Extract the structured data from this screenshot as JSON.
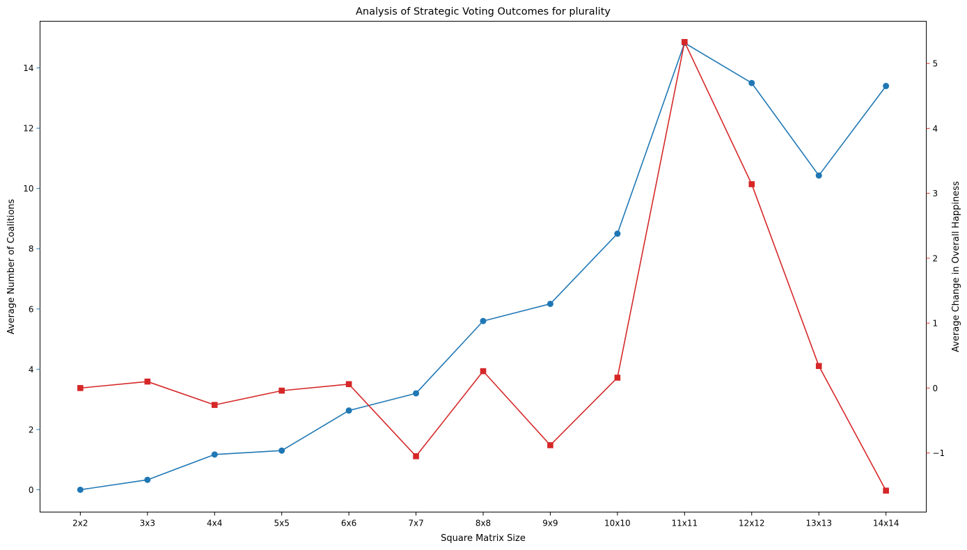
{
  "chart_data": {
    "type": "line",
    "title": "Analysis of Strategic Voting Outcomes for plurality",
    "xlabel": "Square Matrix Size",
    "categories": [
      "2x2",
      "3x3",
      "4x4",
      "5x5",
      "6x6",
      "7x7",
      "8x8",
      "9x9",
      "10x10",
      "11x11",
      "12x12",
      "13x13",
      "14x14"
    ],
    "grid": false,
    "legend": "none",
    "y_left": {
      "label": "Average Number of Coalitions",
      "color": "#1f77b4",
      "ylim": [
        -0.74,
        15.55
      ],
      "ticks": [
        0,
        2,
        4,
        6,
        8,
        10,
        12,
        14
      ]
    },
    "y_right": {
      "label": "Average Change in Overall Happiness",
      "color": "#d62728",
      "ylim": [
        -1.91,
        5.65
      ],
      "ticks": [
        -1,
        0,
        1,
        2,
        3,
        4,
        5
      ],
      "tick_labels": [
        "−1",
        "0",
        "1",
        "2",
        "3",
        "4",
        "5"
      ]
    },
    "series": [
      {
        "axis": "left",
        "marker": "circle",
        "color": "#1f77b4",
        "values": [
          0.0,
          0.33,
          1.17,
          1.3,
          2.63,
          3.2,
          5.6,
          6.17,
          8.5,
          14.83,
          13.5,
          10.43,
          13.4
        ]
      },
      {
        "axis": "right",
        "marker": "square",
        "color": "#d62728",
        "values": [
          0.0,
          0.1,
          -0.26,
          -0.04,
          0.06,
          -1.05,
          0.26,
          -0.88,
          0.16,
          5.33,
          3.14,
          0.34,
          -1.58
        ]
      }
    ]
  }
}
